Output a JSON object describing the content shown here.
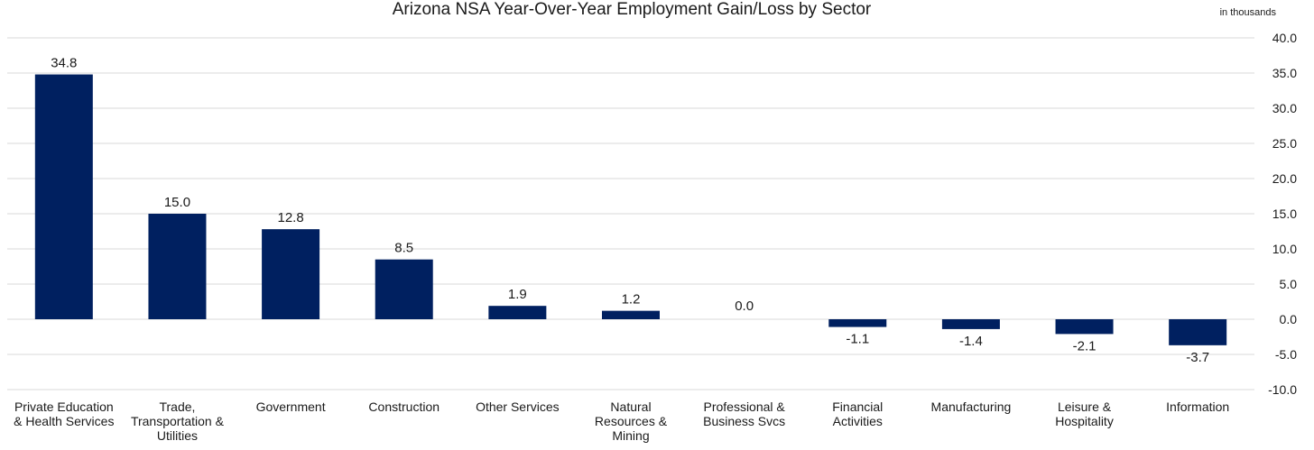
{
  "chart_data": {
    "type": "bar",
    "title": "Arizona NSA Year-Over-Year Employment Gain/Loss by Sector",
    "unit": "in thousands",
    "categories": [
      [
        "Private Education",
        "& Health Services"
      ],
      [
        "Trade,",
        "Transportation &",
        "Utilities"
      ],
      [
        "Government"
      ],
      [
        "Construction"
      ],
      [
        "Other Services"
      ],
      [
        "Natural",
        "Resources &",
        "Mining"
      ],
      [
        "Professional &",
        "Business Svcs"
      ],
      [
        "Financial",
        "Activities"
      ],
      [
        "Manufacturing"
      ],
      [
        "Leisure &",
        "Hospitality"
      ],
      [
        "Information"
      ]
    ],
    "values": [
      34.8,
      15.0,
      12.8,
      8.5,
      1.9,
      1.2,
      0.0,
      -1.1,
      -1.4,
      -2.1,
      -3.7
    ],
    "value_labels": [
      "34.8",
      "15.0",
      "12.8",
      "8.5",
      "1.9",
      "1.2",
      "0.0",
      "-1.1",
      "-1.4",
      "-2.1",
      "-3.7"
    ],
    "ylim": [
      -10,
      40
    ],
    "yticks": [
      "40.0",
      "35.0",
      "30.0",
      "25.0",
      "20.0",
      "15.0",
      "10.0",
      "5.0",
      "0.0",
      "-5.0",
      "-10.0"
    ],
    "grid": true,
    "bar_color": "#002060",
    "grid_color": "#d9d9d9"
  }
}
